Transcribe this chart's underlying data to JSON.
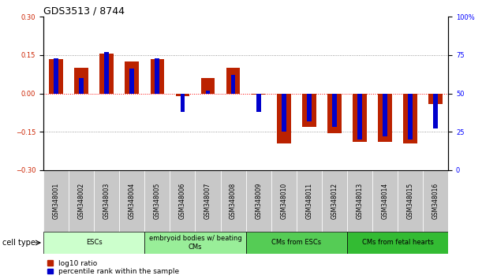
{
  "title": "GDS3513 / 8744",
  "samples": [
    "GSM348001",
    "GSM348002",
    "GSM348003",
    "GSM348004",
    "GSM348005",
    "GSM348006",
    "GSM348007",
    "GSM348008",
    "GSM348009",
    "GSM348010",
    "GSM348011",
    "GSM348012",
    "GSM348013",
    "GSM348014",
    "GSM348015",
    "GSM348016"
  ],
  "log10_ratio": [
    0.135,
    0.1,
    0.155,
    0.125,
    0.135,
    -0.01,
    0.06,
    0.1,
    -0.005,
    -0.195,
    -0.13,
    -0.155,
    -0.19,
    -0.19,
    -0.195,
    -0.04
  ],
  "percentile_rank": [
    73,
    60,
    77,
    66,
    73,
    38,
    52,
    62,
    38,
    25,
    32,
    28,
    20,
    22,
    20,
    27
  ],
  "ylim_left": [
    -0.3,
    0.3
  ],
  "ylim_right": [
    0,
    100
  ],
  "bar_color_red": "#bb2200",
  "bar_color_blue": "#0000cc",
  "cell_groups": [
    {
      "label": "ESCs",
      "start": 0,
      "end": 4,
      "color": "#ccffcc"
    },
    {
      "label": "embryoid bodies w/ beating\nCMs",
      "start": 4,
      "end": 8,
      "color": "#99ee99"
    },
    {
      "label": "CMs from ESCs",
      "start": 8,
      "end": 12,
      "color": "#55cc55"
    },
    {
      "label": "CMs from fetal hearts",
      "start": 12,
      "end": 16,
      "color": "#33bb33"
    }
  ],
  "red_bar_width": 0.55,
  "blue_bar_width": 0.18,
  "title_fontsize": 9,
  "tick_fontsize": 6,
  "sample_fontsize": 5.5
}
